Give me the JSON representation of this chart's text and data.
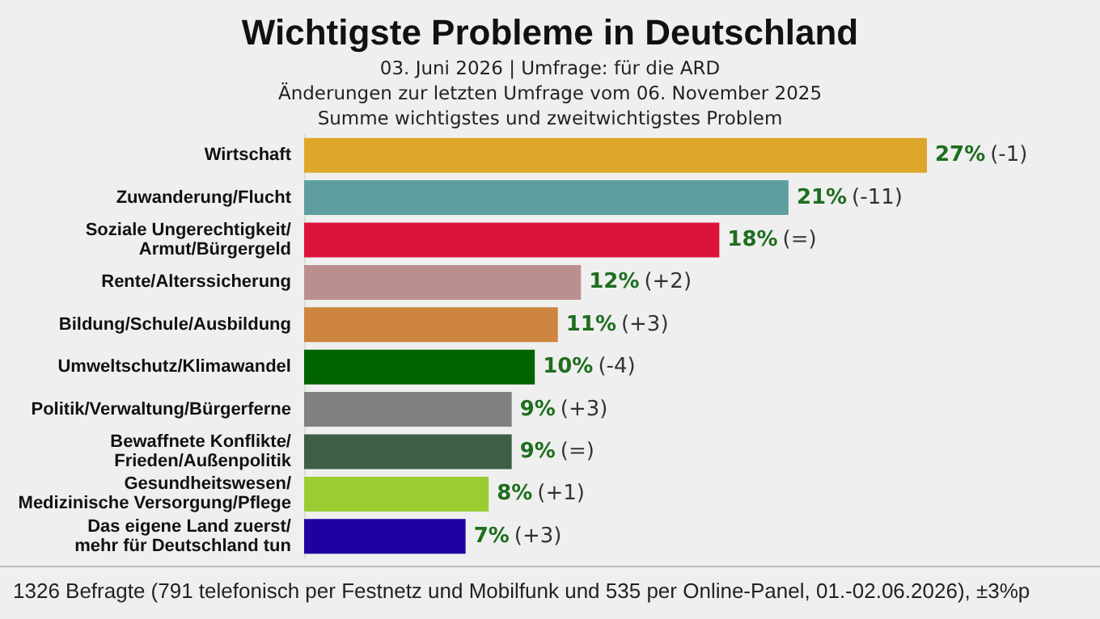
{
  "chart_data": {
    "type": "bar",
    "orientation": "horizontal",
    "title": "Wichtigste Probleme in Deutschland",
    "subtitle": "03. Juni 2026 | Umfrage: für die ARD\nÄnderungen zur letzten Umfrage vom 06. November 2025\nSumme wichtigstes und zweitwichtigstes Problem",
    "categories": [
      "Wirtschaft",
      "Zuwanderung/Flucht",
      "Soziale Ungerechtigkeit/\nArmut/Bürgergeld",
      "Rente/Alterssicherung",
      "Bildung/Schule/Ausbildung",
      "Umweltschutz/Klimawandel",
      "Politik/Verwaltung/Bürgerferne",
      "Bewaffnete Konflikte/\nFrieden/Außenpolitik",
      "Gesundheitswesen/\nMedizinische Versorgung/Pflege",
      "Das eigene Land zuerst/\nmehr für Deutschland tun"
    ],
    "values": [
      27,
      21,
      18,
      12,
      11,
      10,
      9,
      9,
      8,
      7
    ],
    "value_labels": [
      "27% (-1)",
      "21% (-11)",
      "18% (=)",
      "12% (+2)",
      "11% (+3)",
      "10% (-4)",
      "9% (+3)",
      "9% (=)",
      "8% (+1)",
      "7% (+3)"
    ],
    "colors": [
      "#dda72a",
      "#5f9ea0",
      "#dc143c",
      "#bc8f8f",
      "#cd853f",
      "#006400",
      "#808080",
      "#3e5e45",
      "#9acd32",
      "#1f00a0"
    ],
    "annotations": [
      "1326 Befragte (791 telefonisch per Festnetz und Mobilfunk und 535 per Online-Panel, 01.-02.06.2026), ±3%p"
    ]
  }
}
